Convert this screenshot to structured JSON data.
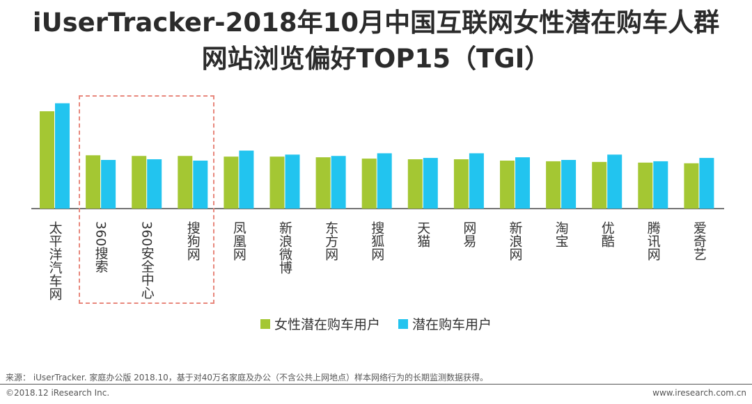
{
  "title_line1": "iUserTracker-2018年10月中国互联网女性潜在购车人群",
  "title_line2": "网站浏览偏好TOP15（TGI）",
  "chart_data": {
    "type": "bar",
    "title": "iUserTracker-2018年10月中国互联网女性潜在购车人群网站浏览偏好TOP15（TGI）",
    "categories": [
      "太平洋汽车网",
      "360搜索",
      "360安全中心",
      "搜狗网",
      "凤凰网",
      "新浪微博",
      "东方网",
      "搜狐网",
      "天猫",
      "网易",
      "新浪网",
      "淘宝",
      "优酷",
      "腾讯网",
      "爱奇艺"
    ],
    "series": [
      {
        "name": "女性潜在购车用户",
        "color": "#a4c733",
        "values": [
          146,
          80,
          79,
          79,
          78,
          78,
          77,
          75,
          74,
          74,
          72,
          71,
          70,
          69,
          68
        ]
      },
      {
        "name": "潜在购车用户",
        "color": "#22c4ef",
        "values": [
          158,
          73,
          74,
          72,
          87,
          81,
          79,
          83,
          76,
          83,
          77,
          73,
          81,
          71,
          76
        ]
      }
    ],
    "xlabel": "",
    "ylabel": "",
    "ylim": [
      0,
      170
    ],
    "grid": false,
    "highlight": [
      "360搜索",
      "360安全中心",
      "搜狗网"
    ],
    "legend_position": "bottom"
  },
  "legend": {
    "female_label": "女性潜在购车用户",
    "all_label": "潜在购车用户"
  },
  "source_text": "来源： iUserTracker. 家庭办公版 2018.10，基于对40万名家庭及办公（不含公共上网地点）样本网络行为的长期监测数据获得。",
  "copyright": "©2018.12 iResearch Inc.",
  "website": "www.iresearch.com.cn"
}
